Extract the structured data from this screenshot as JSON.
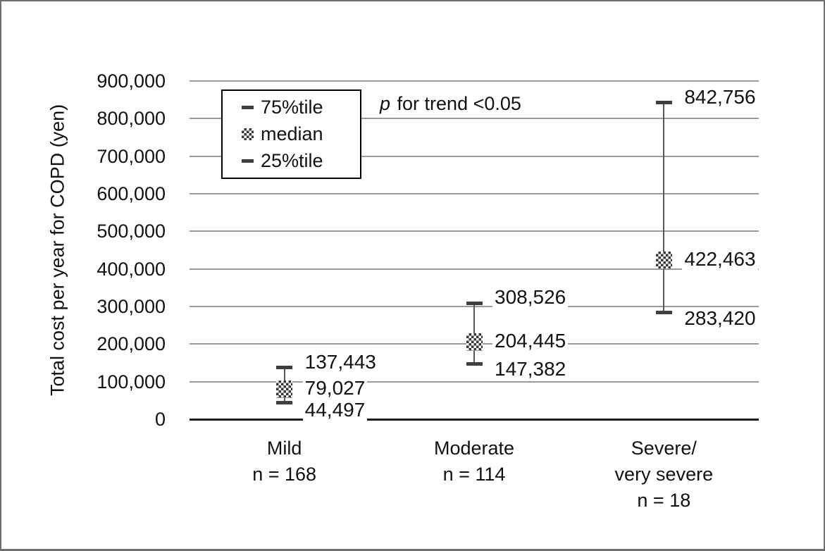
{
  "chart_data": {
    "type": "error-bar",
    "title": "",
    "ylabel": "Total cost per year for COPD (yen)",
    "xlabel": "",
    "ylim": [
      0,
      900000
    ],
    "ytick_step": 100000,
    "ytick_labels": [
      "0",
      "100,000",
      "200,000",
      "300,000",
      "400,000",
      "500,000",
      "600,000",
      "700,000",
      "800,000",
      "900,000"
    ],
    "grid": "horizontal",
    "legend": {
      "position": "top-left-inside",
      "entries": [
        "75%tile",
        "median",
        "25%tile"
      ]
    },
    "annotation": {
      "italic": "p",
      "text": " for trend <0.05"
    },
    "categories": [
      {
        "lines": [
          "Mild",
          "n = 168"
        ]
      },
      {
        "lines": [
          "Moderate",
          "n = 114"
        ]
      },
      {
        "lines": [
          "Severe/",
          "very severe",
          "n = 18"
        ]
      }
    ],
    "series": [
      {
        "name": "75%tile",
        "values": [
          137443,
          308526,
          842756
        ],
        "labels": [
          "137,443",
          "308,526",
          "842,756"
        ]
      },
      {
        "name": "median",
        "values": [
          79027,
          204445,
          422463
        ],
        "labels": [
          "79,027",
          "204,445",
          "422,463"
        ]
      },
      {
        "name": "25%tile",
        "values": [
          44497,
          147382,
          283420
        ],
        "labels": [
          "44,497",
          "147,382",
          "283,420"
        ]
      }
    ]
  },
  "colors": {
    "whisker": "#595959",
    "cap": "#3f3f3f",
    "checker_dark": "#383838",
    "gridline": "#9a9a9a",
    "axis": "#1c1c1c",
    "figure_border": "#707070",
    "text": "#111111"
  }
}
